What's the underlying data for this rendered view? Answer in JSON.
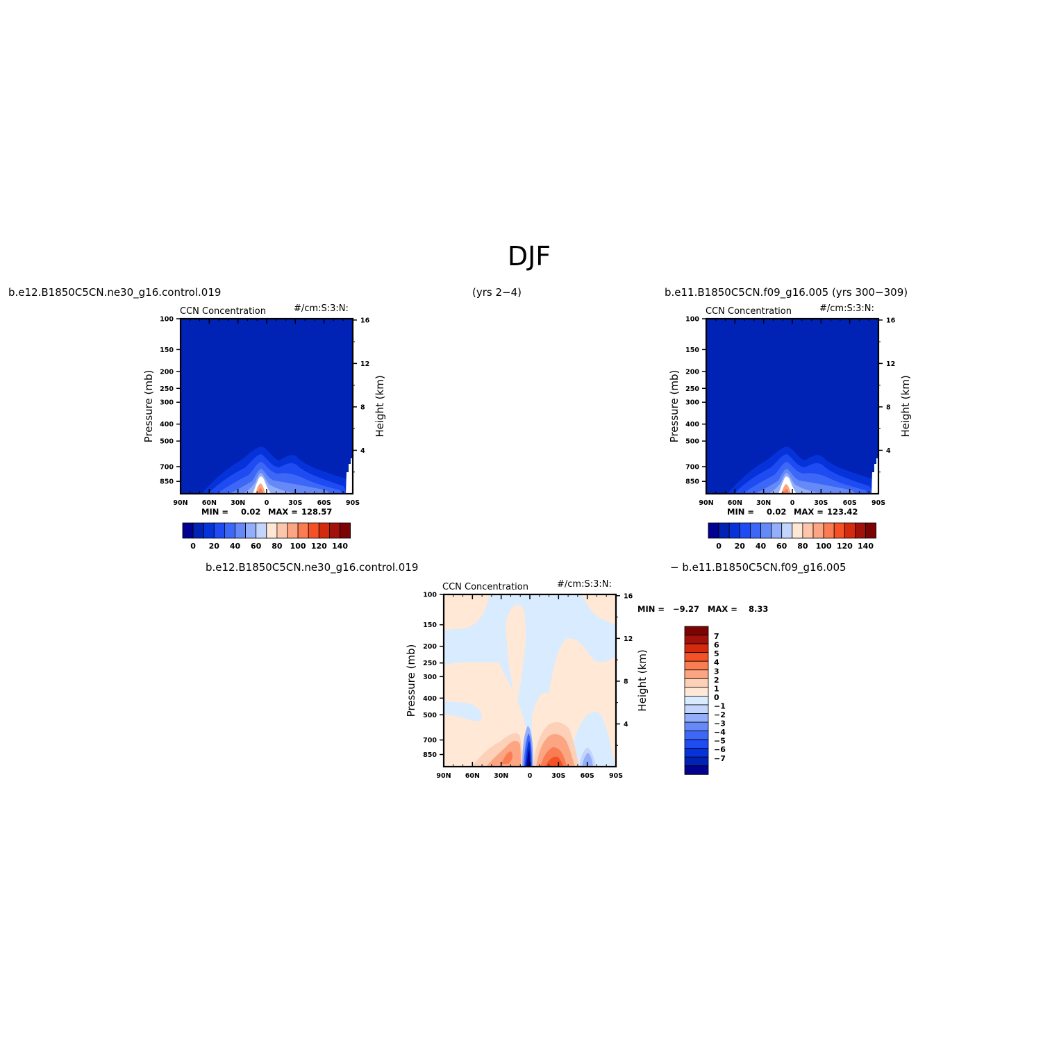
{
  "figure": {
    "title": "DJF",
    "left_case": "b.e12.B1850C5CN.ne30_g16.control.019",
    "left_years": "(yrs 2−4)",
    "right_case": "b.e11.B1850C5CN.f09_g16.005 (yrs 300−309)",
    "diff_case_a": "b.e12.B1850C5CN.ne30_g16.control.019",
    "diff_case_b": "− b.e11.B1850C5CN.f09_g16.005"
  },
  "colors": {
    "blue_seq": [
      "#03018f",
      "#0022b5",
      "#0533d9",
      "#1e4bf2",
      "#3d67f7",
      "#6689f8",
      "#93aefa",
      "#c3d5fd",
      "#ffe7d6",
      "#fdc6ab",
      "#fca582",
      "#fa7c52",
      "#f55127",
      "#d42a0d",
      "#a3120a",
      "#7a0403"
    ],
    "diff_seq": [
      "#03018f",
      "#0022b5",
      "#0533d9",
      "#1e4bf2",
      "#3d67f7",
      "#6689f8",
      "#93aefa",
      "#c3d5fd",
      "#d9ebff",
      "#ffe8d6",
      "#fdd0b8",
      "#fca582",
      "#fa7c52",
      "#f55127",
      "#d42a0d",
      "#a3120a",
      "#7a0403"
    ]
  },
  "chart_data": [
    {
      "type": "heatmap",
      "title": "CCN Concentration",
      "units": "#/cm:S:3:N:",
      "xlabel": "",
      "ylabel": "Pressure (mb)",
      "ylabel_right": "Height (km)",
      "x_ticks": [
        "90N",
        "60N",
        "30N",
        "0",
        "30S",
        "60S",
        "90S"
      ],
      "x_values": [
        90,
        60,
        30,
        0,
        -30,
        -60,
        -90
      ],
      "y_ticks": [
        "100",
        "150",
        "200",
        "250",
        "300",
        "400",
        "500",
        "700",
        "850"
      ],
      "y_values": [
        100,
        150,
        200,
        250,
        300,
        400,
        500,
        700,
        850
      ],
      "y_range": [
        100,
        1000
      ],
      "y_scale": "log",
      "right_ticks": [
        "16",
        "12",
        "8",
        "4"
      ],
      "right_values": [
        16,
        12,
        8,
        4
      ],
      "min_label": "MIN =",
      "min_value": "0.02",
      "max_label": "MAX =",
      "max_value": "128.57",
      "colorbar_labels": [
        "0",
        "20",
        "40",
        "60",
        "80",
        "100",
        "120",
        "140"
      ]
    },
    {
      "type": "heatmap",
      "title": "CCN Concentration",
      "units": "#/cm:S:3:N:",
      "xlabel": "",
      "ylabel": "Pressure (mb)",
      "ylabel_right": "Height (km)",
      "x_ticks": [
        "90N",
        "60N",
        "30N",
        "0",
        "30S",
        "60S",
        "90S"
      ],
      "x_values": [
        90,
        60,
        30,
        0,
        -30,
        -60,
        -90
      ],
      "y_ticks": [
        "100",
        "150",
        "200",
        "250",
        "300",
        "400",
        "500",
        "700",
        "850"
      ],
      "y_values": [
        100,
        150,
        200,
        250,
        300,
        400,
        500,
        700,
        850
      ],
      "y_range": [
        100,
        1000
      ],
      "y_scale": "log",
      "right_ticks": [
        "16",
        "12",
        "8",
        "4"
      ],
      "right_values": [
        16,
        12,
        8,
        4
      ],
      "min_label": "MIN =",
      "min_value": "0.02",
      "max_label": "MAX =",
      "max_value": "123.42",
      "colorbar_labels": [
        "0",
        "20",
        "40",
        "60",
        "80",
        "100",
        "120",
        "140"
      ]
    },
    {
      "type": "heatmap",
      "title": "CCN Concentration",
      "units": "#/cm:S:3:N:",
      "xlabel": "",
      "ylabel": "Pressure (mb)",
      "ylabel_right": "Height (km)",
      "x_ticks": [
        "90N",
        "60N",
        "30N",
        "0",
        "30S",
        "60S",
        "90S"
      ],
      "x_values": [
        90,
        60,
        30,
        0,
        -30,
        -60,
        -90
      ],
      "y_ticks": [
        "100",
        "150",
        "200",
        "250",
        "300",
        "400",
        "500",
        "700",
        "850"
      ],
      "y_values": [
        100,
        150,
        200,
        250,
        300,
        400,
        500,
        700,
        850
      ],
      "y_range": [
        100,
        1000
      ],
      "y_scale": "log",
      "right_ticks": [
        "16",
        "12",
        "8",
        "4"
      ],
      "right_values": [
        16,
        12,
        8,
        4
      ],
      "min_label": "MIN =",
      "min_value": "−9.27",
      "max_label": "MAX =",
      "max_value": "8.33",
      "colorbar_labels": [
        "7",
        "6",
        "5",
        "4",
        "3",
        "2",
        "1",
        "0",
        "−1",
        "−2",
        "−3",
        "−4",
        "−5",
        "−6",
        "−7"
      ]
    }
  ]
}
